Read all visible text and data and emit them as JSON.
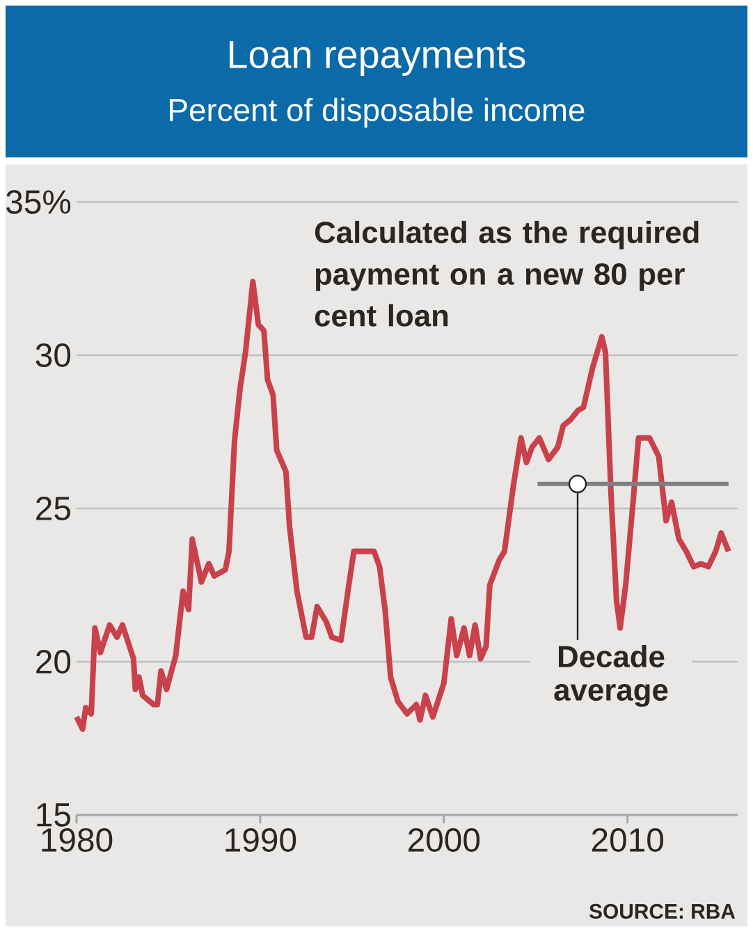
{
  "chart_data": {
    "type": "line",
    "title": "Loan repayments",
    "subtitle": "Percent of disposable income",
    "annotations": [
      "Calculated as the required payment on a new 80 per cent loan",
      "SOURCE: RBA"
    ],
    "xlim": [
      1980,
      2016
    ],
    "xticks": [
      1980,
      1990,
      2000,
      2010
    ],
    "ylim": [
      15,
      35
    ],
    "yticks": [
      15,
      20,
      25,
      30,
      {
        "value": 35,
        "label": "35%"
      }
    ],
    "grid": "y",
    "marker": "none",
    "series": [
      {
        "color": "#c8414b",
        "x": [
          1980.0,
          1980.33,
          1980.5,
          1980.8,
          1981.0,
          1981.3,
          1981.8,
          1982.2,
          1982.5,
          1983.1,
          1983.2,
          1983.4,
          1983.6,
          1984.2,
          1984.4,
          1984.6,
          1984.9,
          1985.4,
          1985.8,
          1986.1,
          1986.3,
          1986.8,
          1987.2,
          1987.5,
          1988.1,
          1988.3,
          1988.6,
          1988.9,
          1989.2,
          1989.6,
          1989.9,
          1990.2,
          1990.4,
          1990.7,
          1990.9,
          1991.4,
          1991.6,
          1992.0,
          1992.5,
          1992.8,
          1993.1,
          1993.6,
          1993.9,
          1994.4,
          1994.8,
          1995.1,
          1995.8,
          1996.2,
          1996.5,
          1996.8,
          1997.1,
          1997.5,
          1998.0,
          1998.5,
          1998.7,
          1999.0,
          1999.4,
          2000.0,
          2000.4,
          2000.7,
          2001.1,
          2001.4,
          2001.7,
          2002.0,
          2002.3,
          2002.5,
          2003.0,
          2003.3,
          2003.8,
          2004.2,
          2004.5,
          2004.8,
          2005.2,
          2005.7,
          2006.2,
          2006.5,
          2006.9,
          2007.3,
          2007.6,
          2008.1,
          2008.6,
          2008.8,
          2009.1,
          2009.4,
          2009.6,
          2009.9,
          2010.3,
          2010.6,
          2011.2,
          2011.7,
          2012.1,
          2012.4,
          2012.8,
          2013.2,
          2013.6,
          2014.0,
          2014.4,
          2014.8,
          2015.1,
          2015.5
        ],
        "values": [
          18.2,
          17.8,
          18.5,
          18.3,
          21.1,
          20.3,
          21.2,
          20.8,
          21.2,
          20.1,
          19.1,
          19.5,
          18.9,
          18.6,
          18.6,
          19.7,
          19.1,
          20.2,
          22.3,
          21.7,
          24.0,
          22.6,
          23.2,
          22.8,
          23.0,
          23.6,
          27.2,
          28.9,
          30.1,
          32.4,
          31.0,
          30.8,
          29.2,
          28.7,
          26.9,
          26.2,
          24.4,
          22.3,
          20.8,
          20.8,
          21.8,
          21.3,
          20.8,
          20.7,
          22.4,
          23.6,
          23.6,
          23.6,
          23.1,
          21.7,
          19.5,
          18.7,
          18.3,
          18.6,
          18.1,
          18.9,
          18.2,
          19.3,
          21.4,
          20.2,
          21.1,
          20.2,
          21.2,
          20.1,
          20.5,
          22.5,
          23.3,
          23.6,
          25.8,
          27.3,
          26.5,
          27.0,
          27.3,
          26.6,
          27.0,
          27.7,
          27.9,
          28.2,
          28.3,
          29.6,
          30.6,
          30.1,
          25.5,
          22.0,
          21.1,
          22.5,
          25.2,
          27.3,
          27.3,
          26.7,
          24.6,
          25.2,
          24.0,
          23.6,
          23.1,
          23.2,
          23.1,
          23.6,
          24.2,
          23.6
        ]
      },
      {
        "name": "Decade average",
        "color": "#7f7f7f",
        "x": [
          2005.1,
          2015.5
        ],
        "values": [
          25.8,
          25.8
        ]
      }
    ]
  }
}
